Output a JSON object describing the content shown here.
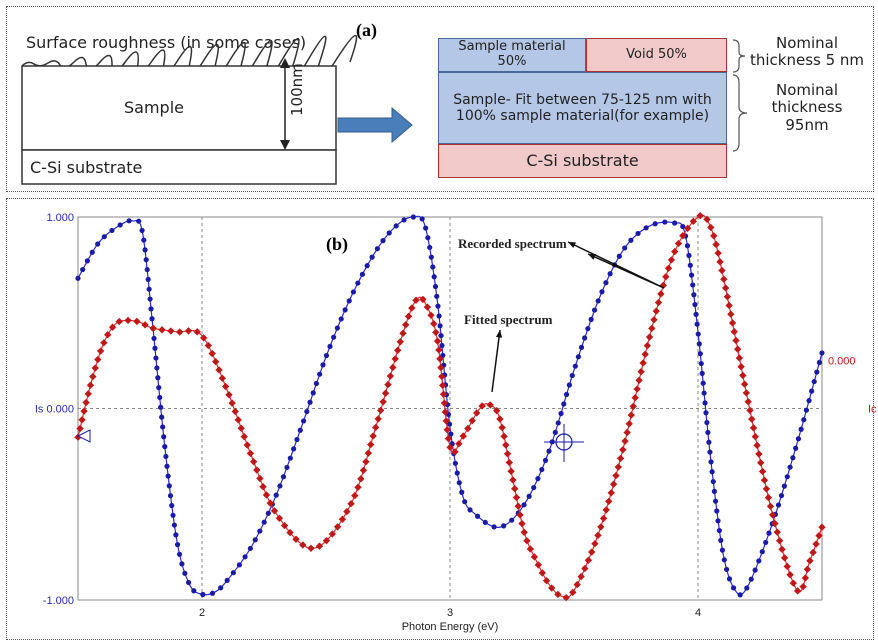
{
  "panel_a": {
    "label": "(a)",
    "left": {
      "surface_roughness": "Surface roughness (in some cases)",
      "sample": "Sample",
      "thickness": "100nm",
      "substrate": "C-Si substrate"
    },
    "right": {
      "sample_material": "Sample material 50%",
      "void": "Void 50%",
      "sample_fit": "Sample- Fit between 75-125 nm with 100% sample material(for example)",
      "substrate": "C-Si substrate",
      "nominal_5": "Nominal thickness 5 nm",
      "nominal_95": "Nominal thickness 95nm"
    },
    "colors": {
      "blue_layer": "#b4c7e7",
      "red_layer": "#f2c9c9",
      "arrow": "#4a7ebb"
    }
  },
  "panel_b": {
    "label": "(b)",
    "recorded_label": "Recorded spectrum",
    "fitted_label": "Fitted spectrum",
    "left_axis_label": "Is",
    "right_axis_label": "Ic",
    "xlabel": "Photon Energy (eV)"
  },
  "chart_data": {
    "type": "line",
    "title": "",
    "xlabel": "Photon Energy (eV)",
    "xlim": [
      1.5,
      4.5
    ],
    "ylim_left": [
      -1.0,
      1.0
    ],
    "ylim_right": [
      -0.5,
      0.5
    ],
    "x_ticks": [
      "2",
      "3",
      "4"
    ],
    "y_ticks_left": [
      "1.000",
      "Is 0.000",
      "-1.000"
    ],
    "y_ticks_right": [
      "0.000",
      "Ic"
    ],
    "grid": true,
    "series": [
      {
        "color": "#1a1aa8",
        "axis": "left",
        "x": [
          1.5,
          1.58,
          1.66,
          1.72,
          1.76,
          1.8,
          1.85,
          1.9,
          1.95,
          2.0,
          2.05,
          2.1,
          2.2,
          2.3,
          2.4,
          2.5,
          2.6,
          2.7,
          2.78,
          2.85,
          2.9,
          2.95,
          3.0,
          3.05,
          3.1,
          3.2,
          3.3,
          3.4,
          3.5,
          3.6,
          3.7,
          3.8,
          3.9,
          3.95,
          4.0,
          4.05,
          4.1,
          4.15,
          4.2,
          4.3,
          4.4,
          4.5
        ],
        "y": [
          0.68,
          0.86,
          0.95,
          0.98,
          0.92,
          0.45,
          -0.2,
          -0.7,
          -0.92,
          -0.97,
          -0.96,
          -0.9,
          -0.72,
          -0.45,
          -0.1,
          0.27,
          0.58,
          0.82,
          0.95,
          1.0,
          0.95,
          0.55,
          -0.1,
          -0.45,
          -0.55,
          -0.62,
          -0.5,
          -0.22,
          0.2,
          0.57,
          0.83,
          0.95,
          0.97,
          0.9,
          0.4,
          -0.25,
          -0.75,
          -0.95,
          -0.93,
          -0.6,
          -0.18,
          0.29
        ]
      },
      {
        "color": "#c01818",
        "axis": "left",
        "x": [
          1.5,
          1.55,
          1.6,
          1.65,
          1.7,
          1.75,
          1.8,
          1.9,
          2.0,
          2.1,
          2.2,
          2.3,
          2.45,
          2.6,
          2.7,
          2.8,
          2.86,
          2.9,
          2.95,
          3.0,
          3.05,
          3.12,
          3.16,
          3.2,
          3.25,
          3.3,
          3.35,
          3.4,
          3.45,
          3.5,
          3.6,
          3.7,
          3.8,
          3.9,
          4.0,
          4.05,
          4.1,
          4.2,
          4.3,
          4.4,
          4.45,
          4.5
        ],
        "y": [
          -0.15,
          0.12,
          0.33,
          0.44,
          0.46,
          0.45,
          0.42,
          0.4,
          0.38,
          0.1,
          -0.25,
          -0.55,
          -0.73,
          -0.5,
          -0.1,
          0.35,
          0.56,
          0.55,
          0.35,
          -0.2,
          -0.15,
          0.0,
          0.02,
          -0.05,
          -0.35,
          -0.65,
          -0.8,
          -0.92,
          -0.98,
          -0.95,
          -0.65,
          -0.2,
          0.35,
          0.8,
          1.0,
          0.95,
          0.7,
          0.05,
          -0.55,
          -0.95,
          -0.8,
          -0.62
        ]
      }
    ],
    "annotations": [
      "Recorded spectrum",
      "Fitted spectrum"
    ]
  }
}
